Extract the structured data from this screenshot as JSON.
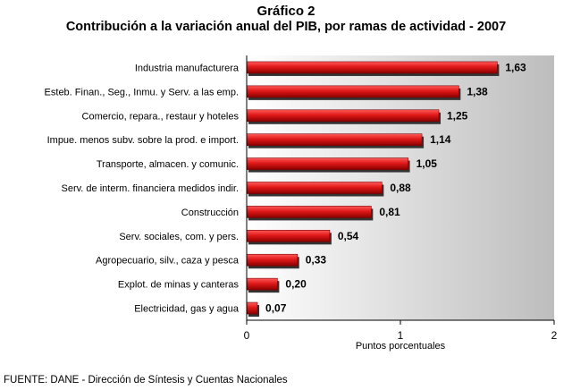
{
  "header": {
    "title": "Gráfico 2",
    "subtitle": "Contribución a la variación anual del PIB, por  ramas de actividad - 2007"
  },
  "footer": {
    "source": "FUENTE: DANE - Dirección de Síntesis y Cuentas Nacionales"
  },
  "chart_data": {
    "type": "bar",
    "orientation": "horizontal",
    "title": "Gráfico 2",
    "subtitle": "Contribución a la variación anual del PIB, por  ramas de actividad - 2007",
    "xlabel": "Puntos porcentuales",
    "ylabel": "",
    "xlim": [
      0,
      2
    ],
    "xticks": [
      0,
      1,
      2
    ],
    "grid": false,
    "legend": "none",
    "categories": [
      "Industria manufacturera",
      "Esteb. Finan., Seg., Inmu. y Serv. a las emp.",
      "Comercio, repara., restaur y hoteles",
      "Impue. menos subv. sobre la prod. e import.",
      "Transporte, almacen. y comunic.",
      "Serv. de interm. financiera medidos indir.",
      "Construcción",
      "Serv. sociales, com. y pers.",
      "Agropecuario, silv., caza y pesca",
      "Explot. de minas y canteras",
      "Electricidad, gas y agua"
    ],
    "values": [
      1.63,
      1.38,
      1.25,
      1.14,
      1.05,
      0.88,
      0.81,
      0.54,
      0.33,
      0.2,
      0.07
    ],
    "value_labels": [
      "1,63",
      "1,38",
      "1,25",
      "1,14",
      "1,05",
      "0,88",
      "0,81",
      "0,54",
      "0,33",
      "0,20",
      "0,07"
    ],
    "colors": {
      "bar": "#d81818",
      "bar_dark": "#7a0000",
      "shadow": "#333333",
      "plot_bg_light": "#ffffff",
      "plot_bg_dark": "#bdbdbd"
    }
  }
}
